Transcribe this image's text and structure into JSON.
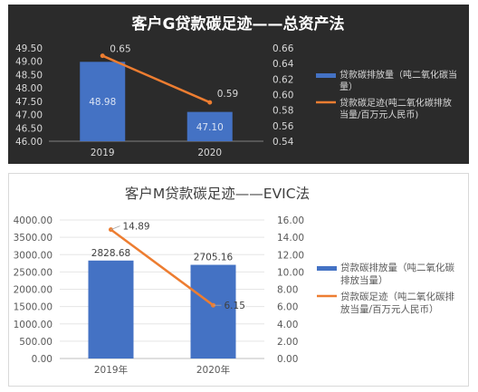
{
  "chart_data": [
    {
      "type": "bar",
      "title": "客户G贷款碳足迹——总资产法",
      "categories": [
        "2019",
        "2020"
      ],
      "y_left": {
        "min": 46.0,
        "max": 49.5,
        "step": 0.5,
        "tick_labels": [
          "46.00",
          "46.50",
          "47.00",
          "47.50",
          "48.00",
          "48.50",
          "49.00",
          "49.50"
        ]
      },
      "y_right": {
        "min": 0.54,
        "max": 0.66,
        "step": 0.02,
        "tick_labels": [
          "0.54",
          "0.56",
          "0.58",
          "0.60",
          "0.62",
          "0.64",
          "0.66"
        ]
      },
      "series": [
        {
          "name": "贷款碳排放量（吨二氧化碳当量）",
          "kind": "bar",
          "axis": "left",
          "values": [
            48.98,
            47.1
          ],
          "labels": [
            "48.98",
            "47.10"
          ]
        },
        {
          "name": "贷款碳足迹(吨二氧化碳排放当量/百万元人民币)",
          "kind": "line",
          "axis": "right",
          "values": [
            0.65,
            0.59
          ],
          "labels": [
            "0.65",
            "0.59"
          ]
        }
      ],
      "legend_position": "right",
      "grid": false,
      "colors": {
        "background": "#2b2b2b",
        "bar": "#4472c4",
        "line": "#ed7d31",
        "text": "#d9d9d9",
        "title": "#ffffff"
      }
    },
    {
      "type": "bar",
      "title": "客户M贷款碳足迹——EVIC法",
      "categories": [
        "2019年",
        "2020年"
      ],
      "y_left": {
        "min": 0,
        "max": 4000,
        "step": 500,
        "tick_labels": [
          "0.00",
          "500.00",
          "1000.00",
          "1500.00",
          "2000.00",
          "2500.00",
          "3000.00",
          "3500.00",
          "4000.00"
        ]
      },
      "y_right": {
        "min": 0,
        "max": 16,
        "step": 2,
        "tick_labels": [
          "0.00",
          "2.00",
          "4.00",
          "6.00",
          "8.00",
          "10.00",
          "12.00",
          "14.00",
          "16.00"
        ]
      },
      "series": [
        {
          "name": "贷款碳排放量（吨二氧化碳排放当量）",
          "kind": "bar",
          "axis": "left",
          "values": [
            2828.68,
            2705.16
          ],
          "labels": [
            "2828.68",
            "2705.16"
          ]
        },
        {
          "name": "贷款碳足迹（吨二氧化碳排放当量/百万元人民币）",
          "kind": "line",
          "axis": "right",
          "values": [
            14.89,
            6.15
          ],
          "labels": [
            "14.89",
            "6.15"
          ]
        }
      ],
      "legend_position": "right",
      "grid": true,
      "colors": {
        "background": "#ffffff",
        "bar": "#4472c4",
        "line": "#ed7d31",
        "text": "#595959",
        "title": "#404040",
        "grid": "#e5e5e5"
      }
    }
  ]
}
